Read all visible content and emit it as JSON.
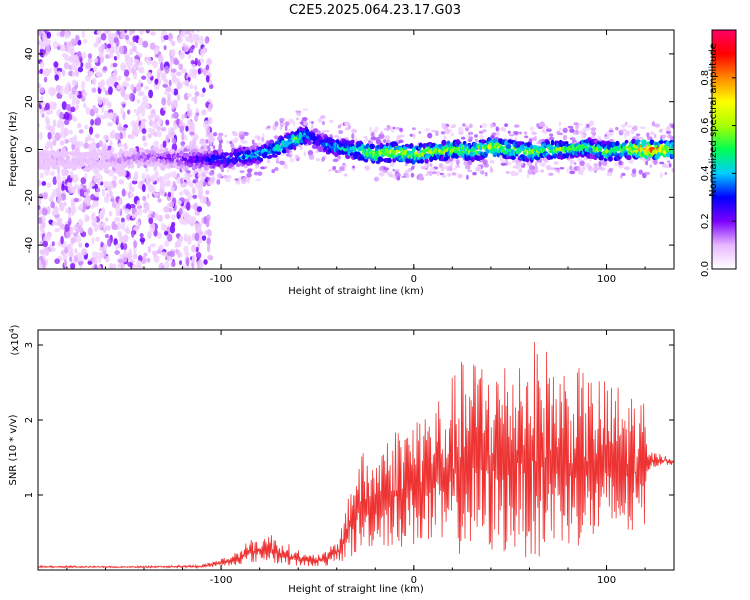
{
  "header": {
    "title": "C2E5.2025.064.23.17.G03"
  },
  "chart_data": [
    {
      "type": "heatmap",
      "name": "spectrogram",
      "xlabel": "Height of straight line (km)",
      "ylabel": "Frequency (Hz)",
      "xlim": [
        -195,
        135
      ],
      "ylim": [
        -50,
        50
      ],
      "x_ticks": [
        -100,
        0,
        100
      ],
      "x_tick_labels": [
        "-100",
        "0",
        "100"
      ],
      "y_ticks": [
        -40,
        -20,
        0,
        20,
        40
      ],
      "y_tick_labels": [
        "-40",
        "-20",
        "0",
        "20",
        "40"
      ],
      "colorbar": {
        "label": "Normalized spectral amplitude",
        "range": [
          0,
          1
        ],
        "ticks": [
          0.0,
          0.2,
          0.4,
          0.6,
          0.8
        ],
        "tick_labels": [
          "0.0",
          "0.2",
          "0.4",
          "0.6",
          "0.8"
        ],
        "colors": [
          "#ffffff",
          "#e8b8ff",
          "#7b00ff",
          "#0000ff",
          "#00ccff",
          "#00ff55",
          "#aaff00",
          "#ffff00",
          "#ff8800",
          "#ff0000",
          "#ff0066"
        ]
      },
      "ridge": {
        "x": [
          -195,
          -170,
          -150,
          -135,
          -120,
          -100,
          -90,
          -80,
          -70,
          -60,
          -55,
          -50,
          -45,
          -40,
          -35,
          -30,
          -25,
          -20,
          -10,
          0,
          10,
          20,
          30,
          40,
          50,
          60,
          70,
          80,
          90,
          100,
          110,
          120,
          130,
          135
        ],
        "freq": [
          -4,
          -5,
          -4,
          -3,
          -4,
          -4,
          -3,
          -2,
          1,
          5,
          6,
          4,
          2,
          1,
          0,
          0,
          -1,
          -2,
          -1,
          -2,
          -1,
          0,
          -1,
          1,
          0,
          -1,
          0,
          0,
          1,
          -1,
          0,
          0,
          0,
          0
        ],
        "amplitude": [
          0.12,
          0.1,
          0.15,
          0.18,
          0.22,
          0.35,
          0.4,
          0.45,
          0.5,
          0.55,
          0.45,
          0.3,
          0.4,
          0.45,
          0.5,
          0.55,
          0.6,
          0.62,
          0.65,
          0.68,
          0.62,
          0.65,
          0.6,
          0.7,
          0.6,
          0.62,
          0.58,
          0.6,
          0.55,
          0.58,
          0.6,
          0.92,
          0.8,
          0.6
        ]
      },
      "noise_region": [
        -195,
        -115
      ]
    },
    {
      "type": "line",
      "name": "snr",
      "xlabel": "Height of straight line (km)",
      "ylabel": "SNR (10 * v/v)",
      "scale_label": "(x10",
      "scale_exponent": "4",
      "scale_close": ")",
      "xlim": [
        -195,
        135
      ],
      "ylim": [
        0,
        3.2
      ],
      "x_ticks": [
        -100,
        0,
        100
      ],
      "x_tick_labels": [
        "-100",
        "0",
        "100"
      ],
      "y_ticks": [
        1,
        2,
        3
      ],
      "y_tick_labels": [
        "1",
        "2",
        "3"
      ],
      "color": "#ee3333",
      "envelope": {
        "x": [
          -195,
          -150,
          -110,
          -95,
          -85,
          -75,
          -65,
          -55,
          -45,
          -38,
          -33,
          -28,
          -22,
          -15,
          -5,
          5,
          15,
          25,
          35,
          45,
          55,
          65,
          75,
          85,
          95,
          105,
          115,
          120,
          121,
          128,
          135
        ],
        "max": [
          0.06,
          0.05,
          0.07,
          0.2,
          0.4,
          0.5,
          0.35,
          0.2,
          0.25,
          0.5,
          1.2,
          1.6,
          1.5,
          1.8,
          2.0,
          2.2,
          2.4,
          2.8,
          2.9,
          2.8,
          3.0,
          3.1,
          2.8,
          2.7,
          2.6,
          2.5,
          2.4,
          2.2,
          1.6,
          1.55,
          1.5
        ],
        "min": [
          0.03,
          0.03,
          0.03,
          0.05,
          0.1,
          0.1,
          0.05,
          0.05,
          0.05,
          0.1,
          0.15,
          0.2,
          0.3,
          0.3,
          0.3,
          0.3,
          0.2,
          0.2,
          0.2,
          0.2,
          0.2,
          0.1,
          0.3,
          0.3,
          0.3,
          0.4,
          0.4,
          0.6,
          1.3,
          1.4,
          1.4
        ]
      }
    }
  ]
}
